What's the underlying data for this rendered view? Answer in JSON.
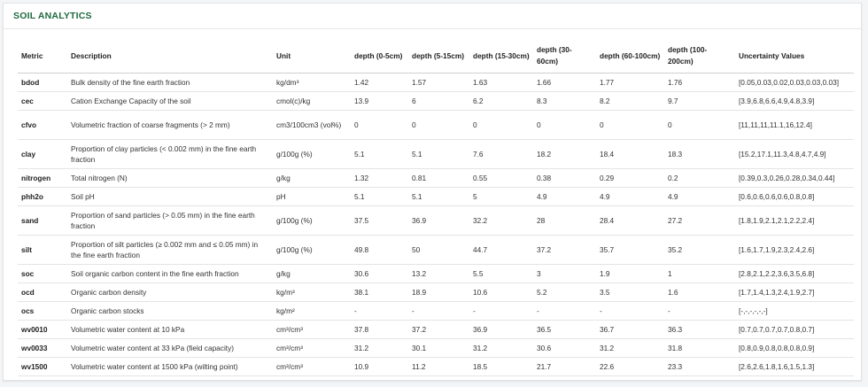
{
  "panel": {
    "title": "SOIL ANALYTICS"
  },
  "table": {
    "headers": [
      "Metric",
      "Description",
      "Unit",
      "depth (0-5cm)",
      "depth (5-15cm)",
      "depth (15-30cm)",
      "depth (30-60cm)",
      "depth (60-100cm)",
      "depth (100-200cm)",
      "Uncertainty Values"
    ],
    "rows": [
      {
        "metric": "bdod",
        "description": "Bulk density of the fine earth fraction",
        "unit": "kg/dm³",
        "d0_5": "1.42",
        "d5_15": "1.57",
        "d15_30": "1.63",
        "d30_60": "1.66",
        "d60_100": "1.77",
        "d100_200": "1.76",
        "uncertainty": "[0.05,0.03,0.02,0.03,0.03,0.03]"
      },
      {
        "metric": "cec",
        "description": "Cation Exchange Capacity of the soil",
        "unit": "cmol(c)/kg",
        "d0_5": "13.9",
        "d5_15": "6",
        "d15_30": "6.2",
        "d30_60": "8.3",
        "d60_100": "8.2",
        "d100_200": "9.7",
        "uncertainty": "[3.9,6.8,6.6,4.9,4.8,3.9]"
      },
      {
        "metric": "cfvo",
        "description": "Volumetric fraction of coarse fragments (> 2 mm)",
        "unit": "cm3/100cm3 (vol%)",
        "d0_5": "0",
        "d5_15": "0",
        "d15_30": "0",
        "d30_60": "0",
        "d60_100": "0",
        "d100_200": "0",
        "uncertainty": "[11,11,11,11.1,16,12.4]"
      },
      {
        "metric": "clay",
        "description": "Proportion of clay particles (< 0.002 mm) in the fine earth fraction",
        "unit": "g/100g (%)",
        "d0_5": "5.1",
        "d5_15": "5.1",
        "d15_30": "7.6",
        "d30_60": "18.2",
        "d60_100": "18.4",
        "d100_200": "18.3",
        "uncertainty": "[15.2,17.1,11.3,4.8,4.7,4.9]"
      },
      {
        "metric": "nitrogen",
        "description": "Total nitrogen (N)",
        "unit": "g/kg",
        "d0_5": "1.32",
        "d5_15": "0.81",
        "d15_30": "0.55",
        "d30_60": "0.38",
        "d60_100": "0.29",
        "d100_200": "0.2",
        "uncertainty": "[0.39,0.3,0.26,0.28,0.34,0.44]"
      },
      {
        "metric": "phh2o",
        "description": "Soil pH",
        "unit": "pH",
        "d0_5": "5.1",
        "d5_15": "5.1",
        "d15_30": "5",
        "d30_60": "4.9",
        "d60_100": "4.9",
        "d100_200": "4.9",
        "uncertainty": "[0.6,0.6,0.6,0.6,0.8,0.8]"
      },
      {
        "metric": "sand",
        "description": "Proportion of sand particles (> 0.05 mm) in the fine earth fraction",
        "unit": "g/100g (%)",
        "d0_5": "37.5",
        "d5_15": "36.9",
        "d15_30": "32.2",
        "d30_60": "28",
        "d60_100": "28.4",
        "d100_200": "27.2",
        "uncertainty": "[1.8,1.9,2.1,2.1,2.2,2.4]"
      },
      {
        "metric": "silt",
        "description": "Proportion of silt particles (≥ 0.002 mm and ≤ 0.05 mm) in the fine earth fraction",
        "unit": "g/100g (%)",
        "d0_5": "49.8",
        "d5_15": "50",
        "d15_30": "44.7",
        "d30_60": "37.2",
        "d60_100": "35.7",
        "d100_200": "35.2",
        "uncertainty": "[1.6,1.7,1.9,2.3,2.4,2.6]"
      },
      {
        "metric": "soc",
        "description": "Soil organic carbon content in the fine earth fraction",
        "unit": "g/kg",
        "d0_5": "30.6",
        "d5_15": "13.2",
        "d15_30": "5.5",
        "d30_60": "3",
        "d60_100": "1.9",
        "d100_200": "1",
        "uncertainty": "[2.8,2.1,2.2,3.6,3.5,6.8]"
      },
      {
        "metric": "ocd",
        "description": "Organic carbon density",
        "unit": "kg/m³",
        "d0_5": "38.1",
        "d5_15": "18.9",
        "d15_30": "10.6",
        "d30_60": "5.2",
        "d60_100": "3.5",
        "d100_200": "1.6",
        "uncertainty": "[1.7,1.4,1.3,2.4,1.9,2.7]"
      },
      {
        "metric": "ocs",
        "description": "Organic carbon stocks",
        "unit": "kg/m²",
        "d0_5": "-",
        "d5_15": "-",
        "d15_30": "-",
        "d30_60": "-",
        "d60_100": "-",
        "d100_200": "-",
        "uncertainty": "[-,-,-,-,-,-]"
      },
      {
        "metric": "wv0010",
        "description": "Volumetric water content at 10 kPa",
        "unit": "cm³/cm³",
        "d0_5": "37.8",
        "d5_15": "37.2",
        "d15_30": "36.9",
        "d30_60": "36.5",
        "d60_100": "36.7",
        "d100_200": "36.3",
        "uncertainty": "[0.7,0.7,0.7,0.7,0.8,0.7]"
      },
      {
        "metric": "wv0033",
        "description": "Volumetric water content at 33 kPa (field capacity)",
        "unit": "cm³/cm³",
        "d0_5": "31.2",
        "d5_15": "30.1",
        "d15_30": "31.2",
        "d30_60": "30.6",
        "d60_100": "31.2",
        "d100_200": "31.8",
        "uncertainty": "[0.8,0.9,0.8,0.8,0.8,0.9]"
      },
      {
        "metric": "wv1500",
        "description": "Volumetric water content at 1500 kPa (wilting point)",
        "unit": "cm³/cm³",
        "d0_5": "10.9",
        "d5_15": "11.2",
        "d15_30": "18.5",
        "d30_60": "21.7",
        "d60_100": "22.6",
        "d100_200": "23.3",
        "uncertainty": "[2.6,2.6,1.8,1.6,1.5,1.3]"
      }
    ]
  }
}
